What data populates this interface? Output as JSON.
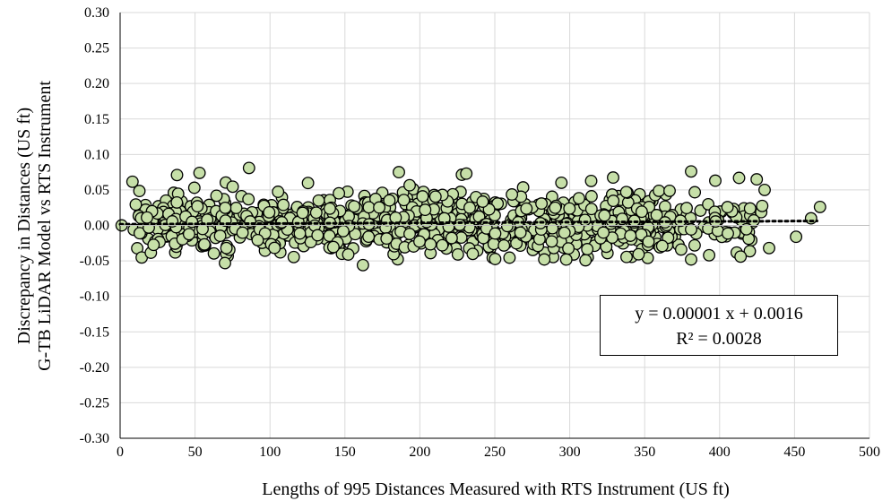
{
  "chart_data": {
    "type": "scatter",
    "title": "",
    "xlabel": "Lengths of 995 Distances Measured with RTS Instrument (US ft)",
    "ylabel": [
      "Discrepancy in Distances (US ft)",
      "G-TB LiDAR Model vs RTS Instrument"
    ],
    "xlim": [
      0,
      500
    ],
    "ylim": [
      -0.3,
      0.3
    ],
    "xticks": [
      "0",
      "50",
      "100",
      "150",
      "200",
      "250",
      "300",
      "350",
      "400",
      "450",
      "500"
    ],
    "yticks": [
      "0.30",
      "0.25",
      "0.20",
      "0.15",
      "0.10",
      "0.05",
      "0.00",
      "-0.05",
      "-0.10",
      "-0.15",
      "-0.20",
      "-0.25",
      "-0.30"
    ],
    "grid": true,
    "marker_color": "#c6dfa8",
    "marker_edge_color": "#000000",
    "point_count": 995,
    "x_data_range": [
      0,
      467
    ],
    "y_data_range": [
      -0.056,
      0.081
    ],
    "highlighted_points": [
      {
        "x": 1,
        "y": 0.0
      },
      {
        "x": 38,
        "y": 0.071
      },
      {
        "x": 53,
        "y": 0.074
      },
      {
        "x": 86,
        "y": 0.081
      },
      {
        "x": 186,
        "y": 0.075
      },
      {
        "x": 231,
        "y": 0.073
      },
      {
        "x": 381,
        "y": 0.076
      },
      {
        "x": 413,
        "y": 0.067
      },
      {
        "x": 430,
        "y": 0.05
      },
      {
        "x": 467,
        "y": 0.026
      },
      {
        "x": 461,
        "y": 0.01
      },
      {
        "x": 451,
        "y": -0.016
      },
      {
        "x": 433,
        "y": -0.032
      },
      {
        "x": 414,
        "y": -0.044
      },
      {
        "x": 393,
        "y": -0.042
      },
      {
        "x": 381,
        "y": -0.048
      },
      {
        "x": 283,
        "y": -0.048
      },
      {
        "x": 162,
        "y": -0.056
      },
      {
        "x": 70,
        "y": -0.053
      }
    ],
    "trendline": {
      "style": "dotted",
      "slope": 1e-05,
      "intercept": 0.0016,
      "x_range": [
        0,
        465
      ],
      "equation_label": "y = 0.00001 x + 0.0016",
      "r2_label": "R² = 0.0028"
    }
  }
}
